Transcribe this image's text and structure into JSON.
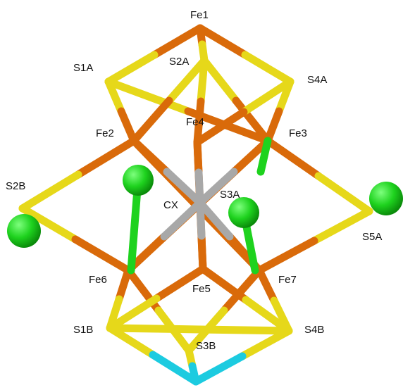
{
  "colors": {
    "iron": "#d96a0a",
    "sulfur": "#e6d81a",
    "carbon": "#a8a8a8",
    "chlorine": "#1ed21e",
    "cyan": "#1ccbe0",
    "background": "#ffffff"
  },
  "atoms": [
    {
      "id": "Fe1",
      "label": "Fe1",
      "element": "iron"
    },
    {
      "id": "S1A",
      "label": "S1A",
      "element": "sulfur"
    },
    {
      "id": "S2A",
      "label": "S2A",
      "element": "sulfur"
    },
    {
      "id": "S4A",
      "label": "S4A",
      "element": "sulfur"
    },
    {
      "id": "Fe2",
      "label": "Fe2",
      "element": "iron"
    },
    {
      "id": "Fe4",
      "label": "Fe4",
      "element": "iron"
    },
    {
      "id": "Fe3",
      "label": "Fe3",
      "element": "iron"
    },
    {
      "id": "S2B",
      "label": "S2B",
      "element": "sulfur"
    },
    {
      "id": "CX",
      "label": "CX",
      "element": "carbon"
    },
    {
      "id": "S3A",
      "label": "S3A",
      "element": "sulfur"
    },
    {
      "id": "S5A",
      "label": "S5A",
      "element": "sulfur"
    },
    {
      "id": "Fe6",
      "label": "Fe6",
      "element": "iron"
    },
    {
      "id": "Fe5",
      "label": "Fe5",
      "element": "iron"
    },
    {
      "id": "Fe7",
      "label": "Fe7",
      "element": "iron"
    },
    {
      "id": "S1B",
      "label": "S1B",
      "element": "sulfur"
    },
    {
      "id": "S3B",
      "label": "S3B",
      "element": "sulfur"
    },
    {
      "id": "S4B",
      "label": "S4B",
      "element": "sulfur"
    }
  ]
}
